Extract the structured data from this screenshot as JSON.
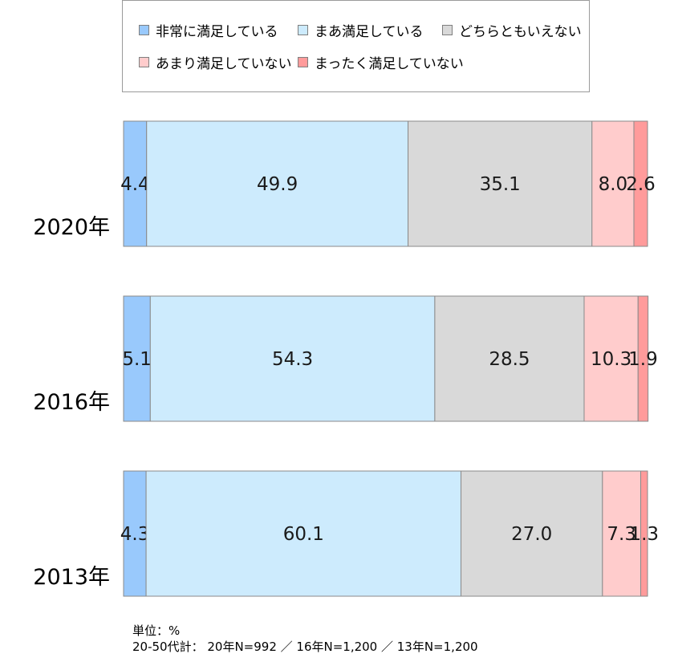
{
  "chart_data": {
    "type": "bar",
    "orientation": "horizontal",
    "stacked": "100%",
    "categories": [
      "2020年",
      "2016年",
      "2013年"
    ],
    "series": [
      {
        "name": "非常に満足している",
        "color": "#99c9fc",
        "values": [
          4.4,
          5.1,
          4.3
        ]
      },
      {
        "name": "まあ満足している",
        "color": "#cdebfd",
        "values": [
          49.9,
          54.3,
          60.1
        ]
      },
      {
        "name": "どちらともいえない",
        "color": "#d9d9d9",
        "values": [
          35.1,
          28.5,
          27.0
        ]
      },
      {
        "name": "あまり満足していない",
        "color": "#ffcccc",
        "values": [
          8.0,
          10.3,
          7.3
        ]
      },
      {
        "name": "まったく満足していない",
        "color": "#ff9b9b",
        "values": [
          2.6,
          1.9,
          1.3
        ]
      }
    ],
    "value_labels": [
      [
        "4.4",
        "49.9",
        "35.1",
        "8.0",
        "2.6"
      ],
      [
        "5.1",
        "54.3",
        "28.5",
        "10.3",
        "1.9"
      ],
      [
        "4.3",
        "60.1",
        "27.0",
        "7.3",
        "1.3"
      ]
    ],
    "legend_position": "top",
    "xlim": [
      0,
      100
    ]
  },
  "notes": {
    "unit": "単位：%",
    "sample": "20-50代計： 20年N=992 ／ 16年N=1,200 ／ 13年N=1,200"
  }
}
